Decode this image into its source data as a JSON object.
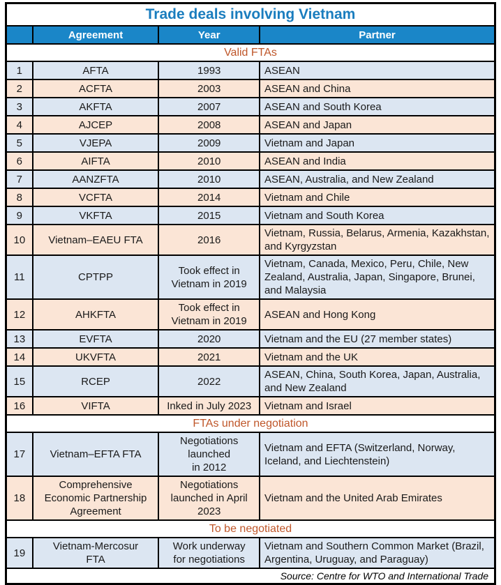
{
  "colors": {
    "header_bg": "#1a86c8",
    "header_text": "#ffffff",
    "title_text": "#1a7dbe",
    "section_text": "#bf5629",
    "row_blue": "#dce6f2",
    "row_peach": "#fbe5d6",
    "border": "#000000"
  },
  "chart_data": {
    "type": "table",
    "title": "Trade deals involving Vietnam",
    "columns": [
      "",
      "Agreement",
      "Year",
      "Partner"
    ],
    "sections": [
      {
        "label": "Valid FTAs",
        "rows": [
          {
            "num": "1",
            "agreement": "AFTA",
            "year": "1993",
            "partner": "ASEAN"
          },
          {
            "num": "2",
            "agreement": "ACFTA",
            "year": "2003",
            "partner": "ASEAN and China"
          },
          {
            "num": "3",
            "agreement": "AKFTA",
            "year": "2007",
            "partner": "ASEAN and South Korea"
          },
          {
            "num": "4",
            "agreement": "AJCEP",
            "year": "2008",
            "partner": "ASEAN and Japan"
          },
          {
            "num": "5",
            "agreement": "VJEPA",
            "year": "2009",
            "partner": "Vietnam and Japan"
          },
          {
            "num": "6",
            "agreement": "AIFTA",
            "year": "2010",
            "partner": "ASEAN and India"
          },
          {
            "num": "7",
            "agreement": "AANZFTA",
            "year": "2010",
            "partner": "ASEAN, Australia, and New Zealand"
          },
          {
            "num": "8",
            "agreement": "VCFTA",
            "year": "2014",
            "partner": "Vietnam and Chile"
          },
          {
            "num": "9",
            "agreement": "VKFTA",
            "year": "2015",
            "partner": "Vietnam and South Korea"
          },
          {
            "num": "10",
            "agreement": "Vietnam–EAEU FTA",
            "year": "2016",
            "partner": "Vietnam, Russia, Belarus, Armenia, Kazakhstan, and Kyrgyzstan"
          },
          {
            "num": "11",
            "agreement": "CPTPP",
            "year": "Took effect in\nVietnam in 2019",
            "partner": "Vietnam, Canada, Mexico, Peru, Chile, New Zealand, Australia, Japan, Singapore, Brunei, and Malaysia"
          },
          {
            "num": "12",
            "agreement": "AHKFTA",
            "year": "Took effect in\nVietnam in 2019",
            "partner": "ASEAN and Hong Kong"
          },
          {
            "num": "13",
            "agreement": "EVFTA",
            "year": "2020",
            "partner": "Vietnam and the EU (27 member states)"
          },
          {
            "num": "14",
            "agreement": "UKVFTA",
            "year": "2021",
            "partner": "Vietnam and the UK"
          },
          {
            "num": "15",
            "agreement": "RCEP",
            "year": "2022",
            "partner": "ASEAN, China, South Korea, Japan, Australia, and New Zealand"
          },
          {
            "num": "16",
            "agreement": "VIFTA",
            "year": "Inked in July 2023",
            "partner": "Vietnam and Israel"
          }
        ]
      },
      {
        "label": "FTAs under negotiation",
        "rows": [
          {
            "num": "17",
            "agreement": "Vietnam–EFTA FTA",
            "year": "Negotiations\nlaunched\nin 2012",
            "partner": "Vietnam and EFTA (Switzerland, Norway, Iceland, and Liechtenstein)"
          },
          {
            "num": "18",
            "agreement": "Comprehensive\nEconomic Partnership\nAgreement",
            "year": "Negotiations\nlaunched in April\n2023",
            "partner": "Vietnam and the United Arab Emirates"
          }
        ]
      },
      {
        "label": "To be negotiated",
        "rows": [
          {
            "num": "19",
            "agreement": "Vietnam-Mercosur\nFTA",
            "year": "Work underway\nfor negotiations",
            "partner": "Vietnam and Southern Common Market (Brazil, Argentina, Uruguay, and Paraguay)"
          }
        ]
      }
    ],
    "source": "Source: Centre for WTO and International Trade"
  }
}
